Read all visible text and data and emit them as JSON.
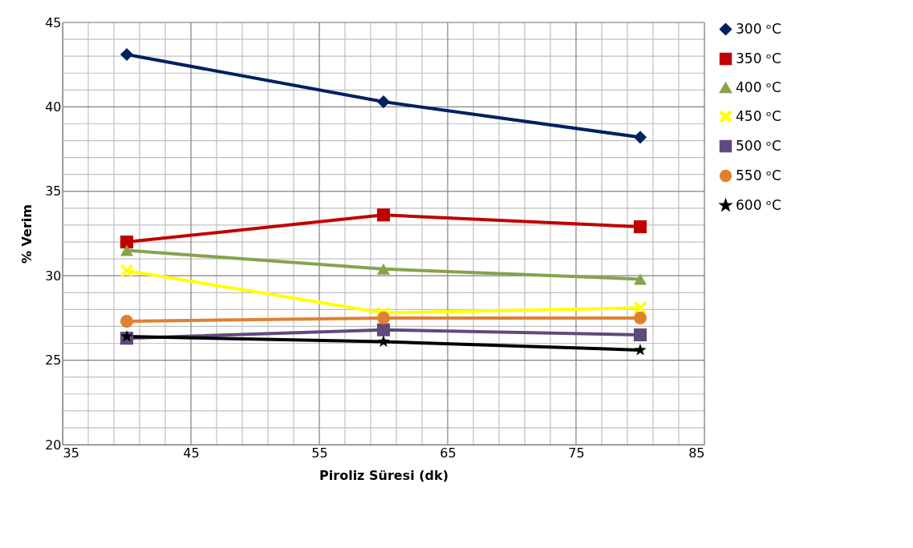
{
  "chart_data": {
    "type": "line",
    "xlabel": "Piroliz Süresi (dk)",
    "ylabel": "% Verim",
    "x": [
      40,
      60,
      80
    ],
    "series": [
      {
        "name": "300 ᵒC",
        "color": "#002060",
        "marker": "diamond",
        "values": [
          43.1,
          40.3,
          38.2
        ]
      },
      {
        "name": "350 ᵒC",
        "color": "#c00000",
        "marker": "square",
        "values": [
          32.0,
          33.6,
          32.9
        ]
      },
      {
        "name": "400 ᵒC",
        "color": "#86a34b",
        "marker": "triangle",
        "values": [
          31.5,
          30.4,
          29.8
        ]
      },
      {
        "name": "450 ᵒC",
        "color": "#ffff00",
        "marker": "cross",
        "values": [
          30.3,
          27.8,
          28.1
        ]
      },
      {
        "name": "500 ᵒC",
        "color": "#604a7b",
        "marker": "square",
        "values": [
          26.3,
          26.8,
          26.5
        ]
      },
      {
        "name": "550 ᵒC",
        "color": "#e08030",
        "marker": "circle",
        "values": [
          27.3,
          27.5,
          27.5
        ]
      },
      {
        "name": "600 ᵒC",
        "color": "#000000",
        "marker": "star",
        "values": [
          26.4,
          26.1,
          25.6
        ]
      }
    ],
    "xlim": [
      35,
      85
    ],
    "xticks": [
      35,
      {
        "value": 37,
        "label": null
      },
      {
        "value": 39,
        "label": null
      },
      {
        "value": 41,
        "label": null
      },
      {
        "value": 43,
        "label": null
      },
      45,
      {
        "value": 47,
        "label": null
      },
      {
        "value": 49,
        "label": null
      },
      {
        "value": 51,
        "label": null
      },
      {
        "value": 53,
        "label": null
      },
      55,
      {
        "value": 57,
        "label": null
      },
      {
        "value": 59,
        "label": null
      },
      {
        "value": 61,
        "label": null
      },
      {
        "value": 63,
        "label": null
      },
      65,
      {
        "value": 67,
        "label": null
      },
      {
        "value": 69,
        "label": null
      },
      {
        "value": 71,
        "label": null
      },
      {
        "value": 73,
        "label": null
      },
      75,
      {
        "value": 77,
        "label": null
      },
      {
        "value": 79,
        "label": null
      },
      {
        "value": 81,
        "label": null
      },
      {
        "value": 83,
        "label": null
      },
      85
    ],
    "ylim": [
      20,
      45
    ],
    "yticks": [
      20,
      {
        "value": 21,
        "label": null
      },
      {
        "value": 22,
        "label": null
      },
      {
        "value": 23,
        "label": null
      },
      {
        "value": 24,
        "label": null
      },
      25,
      {
        "value": 26,
        "label": null
      },
      {
        "value": 27,
        "label": null
      },
      {
        "value": 28,
        "label": null
      },
      {
        "value": 29,
        "label": null
      },
      30,
      {
        "value": 31,
        "label": null
      },
      {
        "value": 32,
        "label": null
      },
      {
        "value": 33,
        "label": null
      },
      {
        "value": 34,
        "label": null
      },
      35,
      {
        "value": 36,
        "label": null
      },
      {
        "value": 37,
        "label": null
      },
      {
        "value": 38,
        "label": null
      },
      {
        "value": 39,
        "label": null
      },
      40,
      {
        "value": 41,
        "label": null
      },
      {
        "value": 42,
        "label": null
      },
      {
        "value": 43,
        "label": null
      },
      {
        "value": 44,
        "label": null
      },
      45
    ],
    "grid": true,
    "legend": "right",
    "line_style": "solid"
  }
}
